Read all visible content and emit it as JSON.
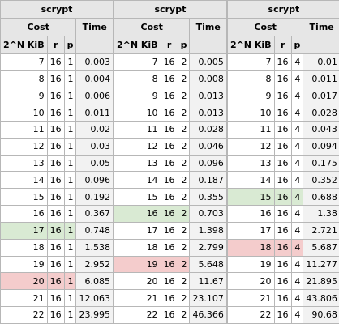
{
  "colors": {
    "header_bg": "#e6e6e6",
    "time_bg": "#f2f2f2",
    "highlight_green": "#d9ead3",
    "highlight_red": "#f4cccc",
    "grid": "#b7b7b7"
  },
  "blocks": [
    {
      "title": "scrypt",
      "cost_label": "Cost",
      "time_label": "Time",
      "col_n": "2^N KiB",
      "col_r": "r",
      "col_p": "p",
      "rows": [
        {
          "n": "7",
          "r": "16",
          "p": "1",
          "time": "0.003",
          "mark": ""
        },
        {
          "n": "8",
          "r": "16",
          "p": "1",
          "time": "0.004",
          "mark": ""
        },
        {
          "n": "9",
          "r": "16",
          "p": "1",
          "time": "0.006",
          "mark": ""
        },
        {
          "n": "10",
          "r": "16",
          "p": "1",
          "time": "0.011",
          "mark": ""
        },
        {
          "n": "11",
          "r": "16",
          "p": "1",
          "time": "0.02",
          "mark": ""
        },
        {
          "n": "12",
          "r": "16",
          "p": "1",
          "time": "0.03",
          "mark": ""
        },
        {
          "n": "13",
          "r": "16",
          "p": "1",
          "time": "0.05",
          "mark": ""
        },
        {
          "n": "14",
          "r": "16",
          "p": "1",
          "time": "0.096",
          "mark": ""
        },
        {
          "n": "15",
          "r": "16",
          "p": "1",
          "time": "0.192",
          "mark": ""
        },
        {
          "n": "16",
          "r": "16",
          "p": "1",
          "time": "0.367",
          "mark": ""
        },
        {
          "n": "17",
          "r": "16",
          "p": "1",
          "time": "0.748",
          "mark": "best"
        },
        {
          "n": "18",
          "r": "16",
          "p": "1",
          "time": "1.538",
          "mark": ""
        },
        {
          "n": "19",
          "r": "16",
          "p": "1",
          "time": "2.952",
          "mark": ""
        },
        {
          "n": "20",
          "r": "16",
          "p": "1",
          "time": "6.085",
          "mark": "worst"
        },
        {
          "n": "21",
          "r": "16",
          "p": "1",
          "time": "12.063",
          "mark": ""
        },
        {
          "n": "22",
          "r": "16",
          "p": "1",
          "time": "23.995",
          "mark": ""
        }
      ]
    },
    {
      "title": "scrypt",
      "cost_label": "Cost",
      "time_label": "Time",
      "col_n": "2^N KiB",
      "col_r": "r",
      "col_p": "p",
      "rows": [
        {
          "n": "7",
          "r": "16",
          "p": "2",
          "time": "0.005",
          "mark": ""
        },
        {
          "n": "8",
          "r": "16",
          "p": "2",
          "time": "0.008",
          "mark": ""
        },
        {
          "n": "9",
          "r": "16",
          "p": "2",
          "time": "0.013",
          "mark": ""
        },
        {
          "n": "10",
          "r": "16",
          "p": "2",
          "time": "0.013",
          "mark": ""
        },
        {
          "n": "11",
          "r": "16",
          "p": "2",
          "time": "0.028",
          "mark": ""
        },
        {
          "n": "12",
          "r": "16",
          "p": "2",
          "time": "0.046",
          "mark": ""
        },
        {
          "n": "13",
          "r": "16",
          "p": "2",
          "time": "0.096",
          "mark": ""
        },
        {
          "n": "14",
          "r": "16",
          "p": "2",
          "time": "0.187",
          "mark": ""
        },
        {
          "n": "15",
          "r": "16",
          "p": "2",
          "time": "0.355",
          "mark": ""
        },
        {
          "n": "16",
          "r": "16",
          "p": "2",
          "time": "0.703",
          "mark": "best"
        },
        {
          "n": "17",
          "r": "16",
          "p": "2",
          "time": "1.398",
          "mark": ""
        },
        {
          "n": "18",
          "r": "16",
          "p": "2",
          "time": "2.799",
          "mark": ""
        },
        {
          "n": "19",
          "r": "16",
          "p": "2",
          "time": "5.648",
          "mark": "worst"
        },
        {
          "n": "20",
          "r": "16",
          "p": "2",
          "time": "11.67",
          "mark": ""
        },
        {
          "n": "21",
          "r": "16",
          "p": "2",
          "time": "23.107",
          "mark": ""
        },
        {
          "n": "22",
          "r": "16",
          "p": "2",
          "time": "46.366",
          "mark": ""
        }
      ]
    },
    {
      "title": "scrypt",
      "cost_label": "Cost",
      "time_label": "Time",
      "col_n": "2^N KiB",
      "col_r": "r",
      "col_p": "p",
      "rows": [
        {
          "n": "7",
          "r": "16",
          "p": "4",
          "time": "0.01",
          "mark": ""
        },
        {
          "n": "8",
          "r": "16",
          "p": "4",
          "time": "0.011",
          "mark": ""
        },
        {
          "n": "9",
          "r": "16",
          "p": "4",
          "time": "0.017",
          "mark": ""
        },
        {
          "n": "10",
          "r": "16",
          "p": "4",
          "time": "0.028",
          "mark": ""
        },
        {
          "n": "11",
          "r": "16",
          "p": "4",
          "time": "0.043",
          "mark": ""
        },
        {
          "n": "12",
          "r": "16",
          "p": "4",
          "time": "0.094",
          "mark": ""
        },
        {
          "n": "13",
          "r": "16",
          "p": "4",
          "time": "0.175",
          "mark": ""
        },
        {
          "n": "14",
          "r": "16",
          "p": "4",
          "time": "0.352",
          "mark": ""
        },
        {
          "n": "15",
          "r": "16",
          "p": "4",
          "time": "0.688",
          "mark": "best"
        },
        {
          "n": "16",
          "r": "16",
          "p": "4",
          "time": "1.38",
          "mark": ""
        },
        {
          "n": "17",
          "r": "16",
          "p": "4",
          "time": "2.721",
          "mark": ""
        },
        {
          "n": "18",
          "r": "16",
          "p": "4",
          "time": "5.687",
          "mark": "worst"
        },
        {
          "n": "19",
          "r": "16",
          "p": "4",
          "time": "11.277",
          "mark": ""
        },
        {
          "n": "20",
          "r": "16",
          "p": "4",
          "time": "21.895",
          "mark": ""
        },
        {
          "n": "21",
          "r": "16",
          "p": "4",
          "time": "43.806",
          "mark": ""
        },
        {
          "n": "22",
          "r": "16",
          "p": "4",
          "time": "90.68",
          "mark": ""
        }
      ]
    }
  ]
}
